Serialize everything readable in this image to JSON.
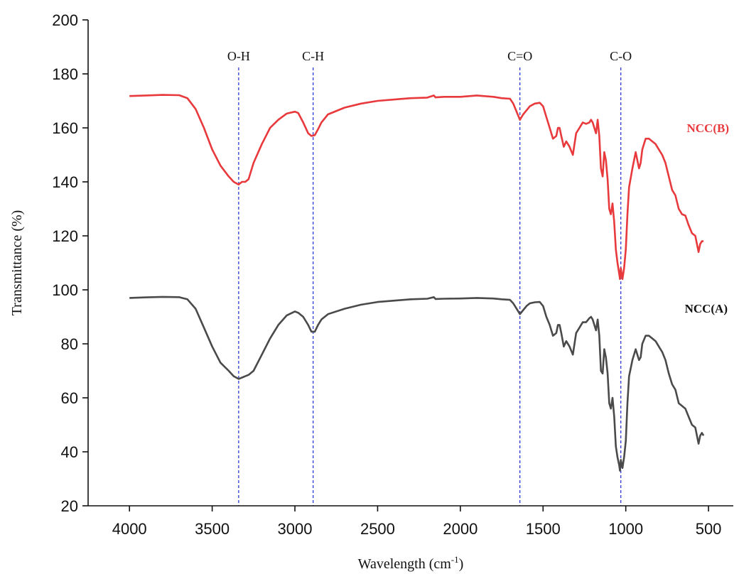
{
  "chart_data": {
    "type": "line",
    "title": "",
    "xlabel": "Wavelength (cm",
    "xlabel_sup": "-1",
    "xlabel_close": ")",
    "ylabel": "Transmittance (%)",
    "xlim": [
      4250,
      350
    ],
    "ylim": [
      20,
      200
    ],
    "xticks": [
      4000,
      3500,
      3000,
      2500,
      2000,
      1500,
      1000,
      500
    ],
    "yticks": [
      20,
      40,
      60,
      80,
      100,
      120,
      140,
      160,
      180,
      200
    ],
    "grid": false,
    "annotations": [
      {
        "label": "O-H",
        "x": 3340
      },
      {
        "label": "C-H",
        "x": 2890
      },
      {
        "label": "C=O",
        "x": 1640
      },
      {
        "label": "C-O",
        "x": 1030
      }
    ],
    "series": [
      {
        "name": "NCC(B)",
        "color": "#e8393c",
        "x": [
          4000,
          3900,
          3800,
          3700,
          3650,
          3600,
          3550,
          3500,
          3450,
          3400,
          3370,
          3340,
          3320,
          3300,
          3280,
          3250,
          3200,
          3150,
          3100,
          3050,
          3000,
          2980,
          2950,
          2920,
          2900,
          2880,
          2860,
          2840,
          2800,
          2700,
          2600,
          2500,
          2400,
          2300,
          2200,
          2160,
          2150,
          2100,
          2000,
          1900,
          1800,
          1750,
          1700,
          1680,
          1660,
          1640,
          1620,
          1600,
          1580,
          1550,
          1520,
          1500,
          1480,
          1460,
          1440,
          1420,
          1410,
          1400,
          1390,
          1375,
          1360,
          1340,
          1320,
          1300,
          1280,
          1260,
          1240,
          1220,
          1210,
          1200,
          1190,
          1180,
          1170,
          1160,
          1150,
          1140,
          1130,
          1120,
          1110,
          1100,
          1090,
          1080,
          1070,
          1060,
          1050,
          1040,
          1035,
          1030,
          1020,
          1010,
          1000,
          990,
          980,
          960,
          940,
          920,
          910,
          900,
          880,
          860,
          840,
          820,
          800,
          780,
          760,
          740,
          720,
          700,
          680,
          660,
          640,
          620,
          600,
          580,
          560,
          550,
          540,
          530
        ],
        "values": [
          171.8,
          172,
          172.2,
          172.1,
          171,
          167,
          160,
          152,
          146,
          142,
          140,
          139,
          140,
          140,
          141,
          147,
          154,
          160,
          163,
          165.3,
          166,
          165.5,
          162,
          158,
          157,
          157.3,
          159.5,
          162,
          165,
          167.5,
          169,
          170,
          170.5,
          171,
          171.2,
          172,
          171.3,
          171.5,
          171.5,
          172,
          171.5,
          171,
          170.8,
          169,
          166,
          163,
          165,
          166.5,
          168,
          169,
          169.3,
          168,
          164,
          160,
          156,
          157,
          160,
          160,
          157,
          153,
          155,
          153,
          150,
          158,
          160,
          162,
          161.5,
          162,
          163,
          162,
          160,
          158,
          163,
          157,
          145,
          142,
          151,
          148,
          141,
          130,
          128,
          132,
          125,
          115,
          110,
          106,
          104,
          108,
          104,
          108,
          115,
          128,
          138,
          145,
          151,
          145,
          147,
          152,
          156,
          156,
          155,
          154,
          152,
          150,
          147,
          142,
          137,
          135,
          130,
          128,
          127.5,
          124,
          121,
          120,
          114,
          117,
          118,
          118
        ]
      },
      {
        "name": "NCC(A)",
        "color": "#4a4a4a",
        "x": [
          4000,
          3900,
          3800,
          3700,
          3650,
          3600,
          3550,
          3500,
          3450,
          3400,
          3370,
          3340,
          3320,
          3300,
          3280,
          3250,
          3200,
          3150,
          3100,
          3050,
          3000,
          2980,
          2950,
          2920,
          2900,
          2880,
          2860,
          2840,
          2800,
          2700,
          2600,
          2500,
          2400,
          2300,
          2200,
          2160,
          2150,
          2100,
          2000,
          1900,
          1800,
          1750,
          1700,
          1680,
          1660,
          1640,
          1620,
          1600,
          1580,
          1550,
          1520,
          1500,
          1480,
          1460,
          1440,
          1420,
          1410,
          1400,
          1390,
          1375,
          1360,
          1340,
          1320,
          1300,
          1280,
          1260,
          1240,
          1220,
          1210,
          1200,
          1190,
          1180,
          1170,
          1160,
          1150,
          1140,
          1130,
          1120,
          1110,
          1100,
          1090,
          1080,
          1070,
          1060,
          1050,
          1040,
          1035,
          1030,
          1020,
          1010,
          1000,
          990,
          980,
          960,
          940,
          920,
          910,
          900,
          880,
          860,
          840,
          820,
          800,
          780,
          760,
          740,
          720,
          700,
          680,
          660,
          640,
          620,
          600,
          580,
          560,
          550,
          540,
          530
        ],
        "values": [
          97,
          97.2,
          97.4,
          97.3,
          96.5,
          93,
          86,
          79,
          73,
          70,
          68,
          67,
          67.5,
          68,
          68.5,
          70,
          76,
          82,
          87,
          90.5,
          92,
          91.5,
          90,
          87,
          84.5,
          84.5,
          87,
          89,
          91,
          93,
          94.5,
          95.5,
          96,
          96.5,
          96.7,
          97.3,
          96.6,
          96.7,
          96.8,
          97,
          96.8,
          96.5,
          96.3,
          95,
          93,
          91,
          92.5,
          94,
          95,
          95.4,
          95.5,
          94,
          90,
          87,
          83,
          84,
          87,
          87,
          84,
          79,
          81,
          79,
          76,
          84,
          86,
          88,
          88,
          89.5,
          90,
          89,
          87,
          85,
          89,
          83,
          70,
          69,
          78,
          75,
          69,
          58,
          56,
          60,
          53,
          42,
          38,
          35,
          33,
          37,
          34,
          38,
          44,
          58,
          68,
          74,
          78,
          74,
          75,
          80,
          83,
          83,
          82,
          81,
          79,
          77,
          74,
          69,
          65,
          63,
          58,
          57,
          56,
          53,
          50,
          49,
          43,
          46,
          47,
          46
        ]
      }
    ]
  }
}
